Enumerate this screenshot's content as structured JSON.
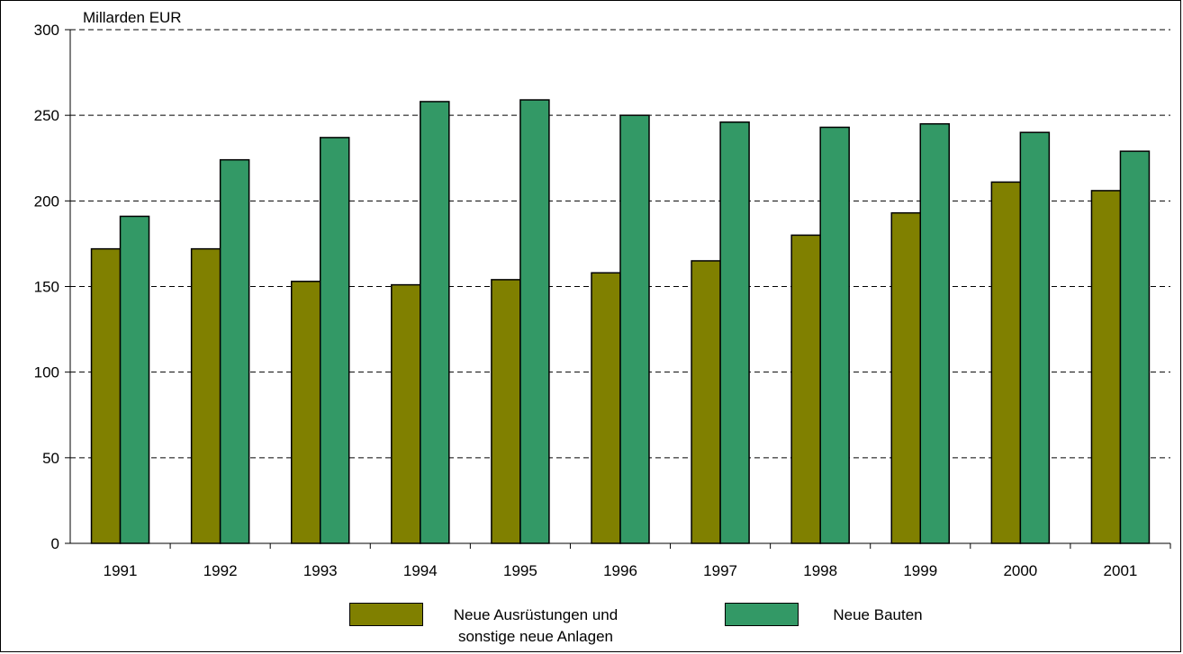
{
  "chart_data": {
    "type": "bar",
    "ylabel": "Millarden EUR",
    "ylim": [
      0,
      300
    ],
    "yticks": [
      0,
      50,
      100,
      150,
      200,
      250,
      300
    ],
    "grid": "horizontal-dashed",
    "legend_position": "bottom",
    "categories": [
      "1991",
      "1992",
      "1993",
      "1994",
      "1995",
      "1996",
      "1997",
      "1998",
      "1999",
      "2000",
      "2001"
    ],
    "series": [
      {
        "name": "Neue Ausrüstungen und sonstige neue Anlagen",
        "name_lines": [
          "Neue Ausrüstungen und",
          "sonstige neue Anlagen"
        ],
        "color": "#808000",
        "values": [
          172,
          172,
          153,
          151,
          154,
          158,
          165,
          180,
          193,
          211,
          206
        ]
      },
      {
        "name": "Neue Bauten",
        "name_lines": [
          "Neue Bauten"
        ],
        "color": "#339966",
        "values": [
          191,
          224,
          237,
          258,
          259,
          250,
          246,
          243,
          245,
          240,
          229
        ]
      }
    ]
  }
}
